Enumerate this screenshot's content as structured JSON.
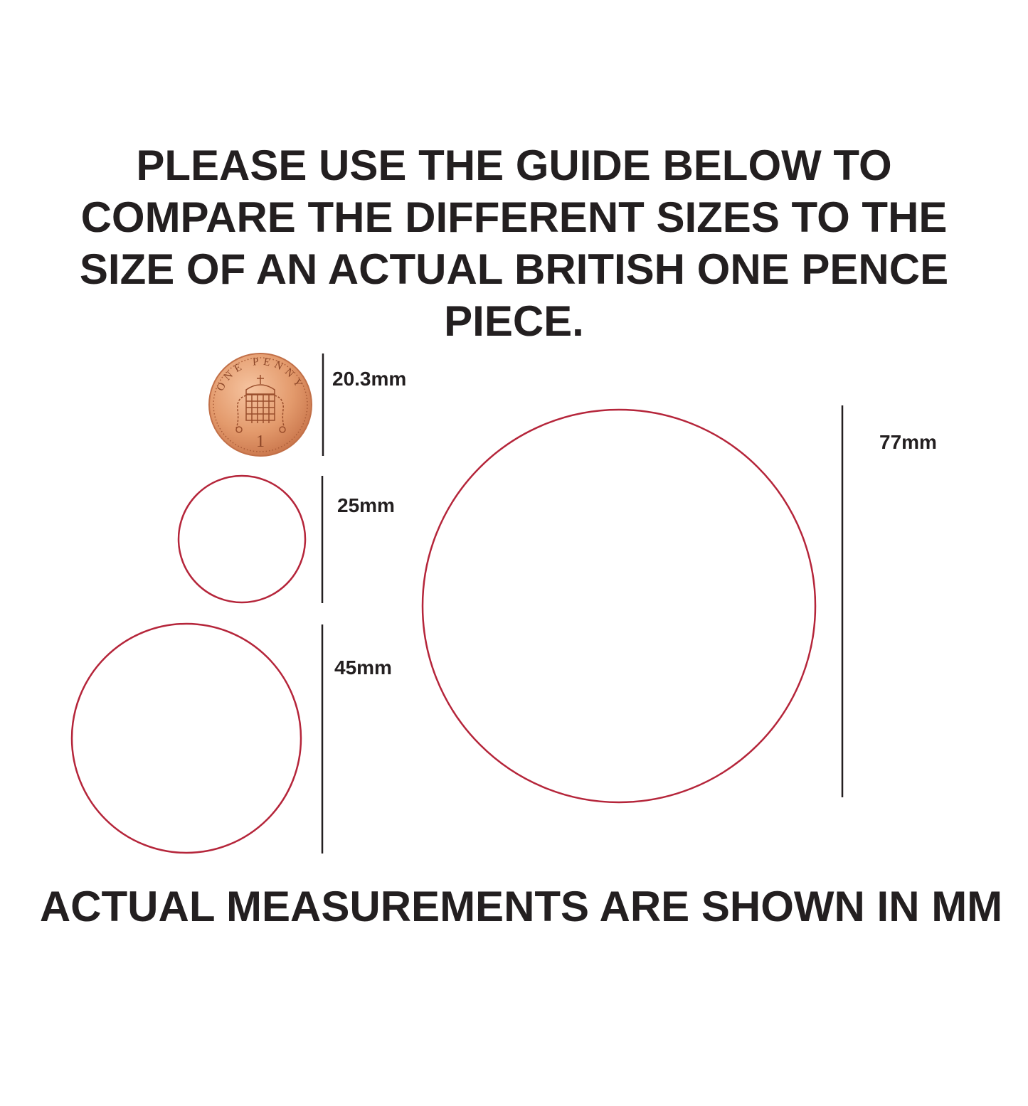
{
  "title_lines": [
    "PLEASE USE THE GUIDE BELOW TO",
    "COMPARE THE DIFFERENT SIZES TO THE",
    "SIZE OF AN ACTUAL BRITISH ONE PENCE",
    "PIECE."
  ],
  "coin": {
    "inscription": "ONE PENNY",
    "denomination": "1",
    "label": "20.3mm",
    "color": "#e09a6e"
  },
  "sizes": [
    {
      "label": "25mm",
      "diameter_mm": 25
    },
    {
      "label": "45mm",
      "diameter_mm": 45
    },
    {
      "label": "77mm",
      "diameter_mm": 77
    }
  ],
  "circle_color": "#b5253a",
  "footer": "ACTUAL MEASUREMENTS ARE SHOWN IN MM"
}
